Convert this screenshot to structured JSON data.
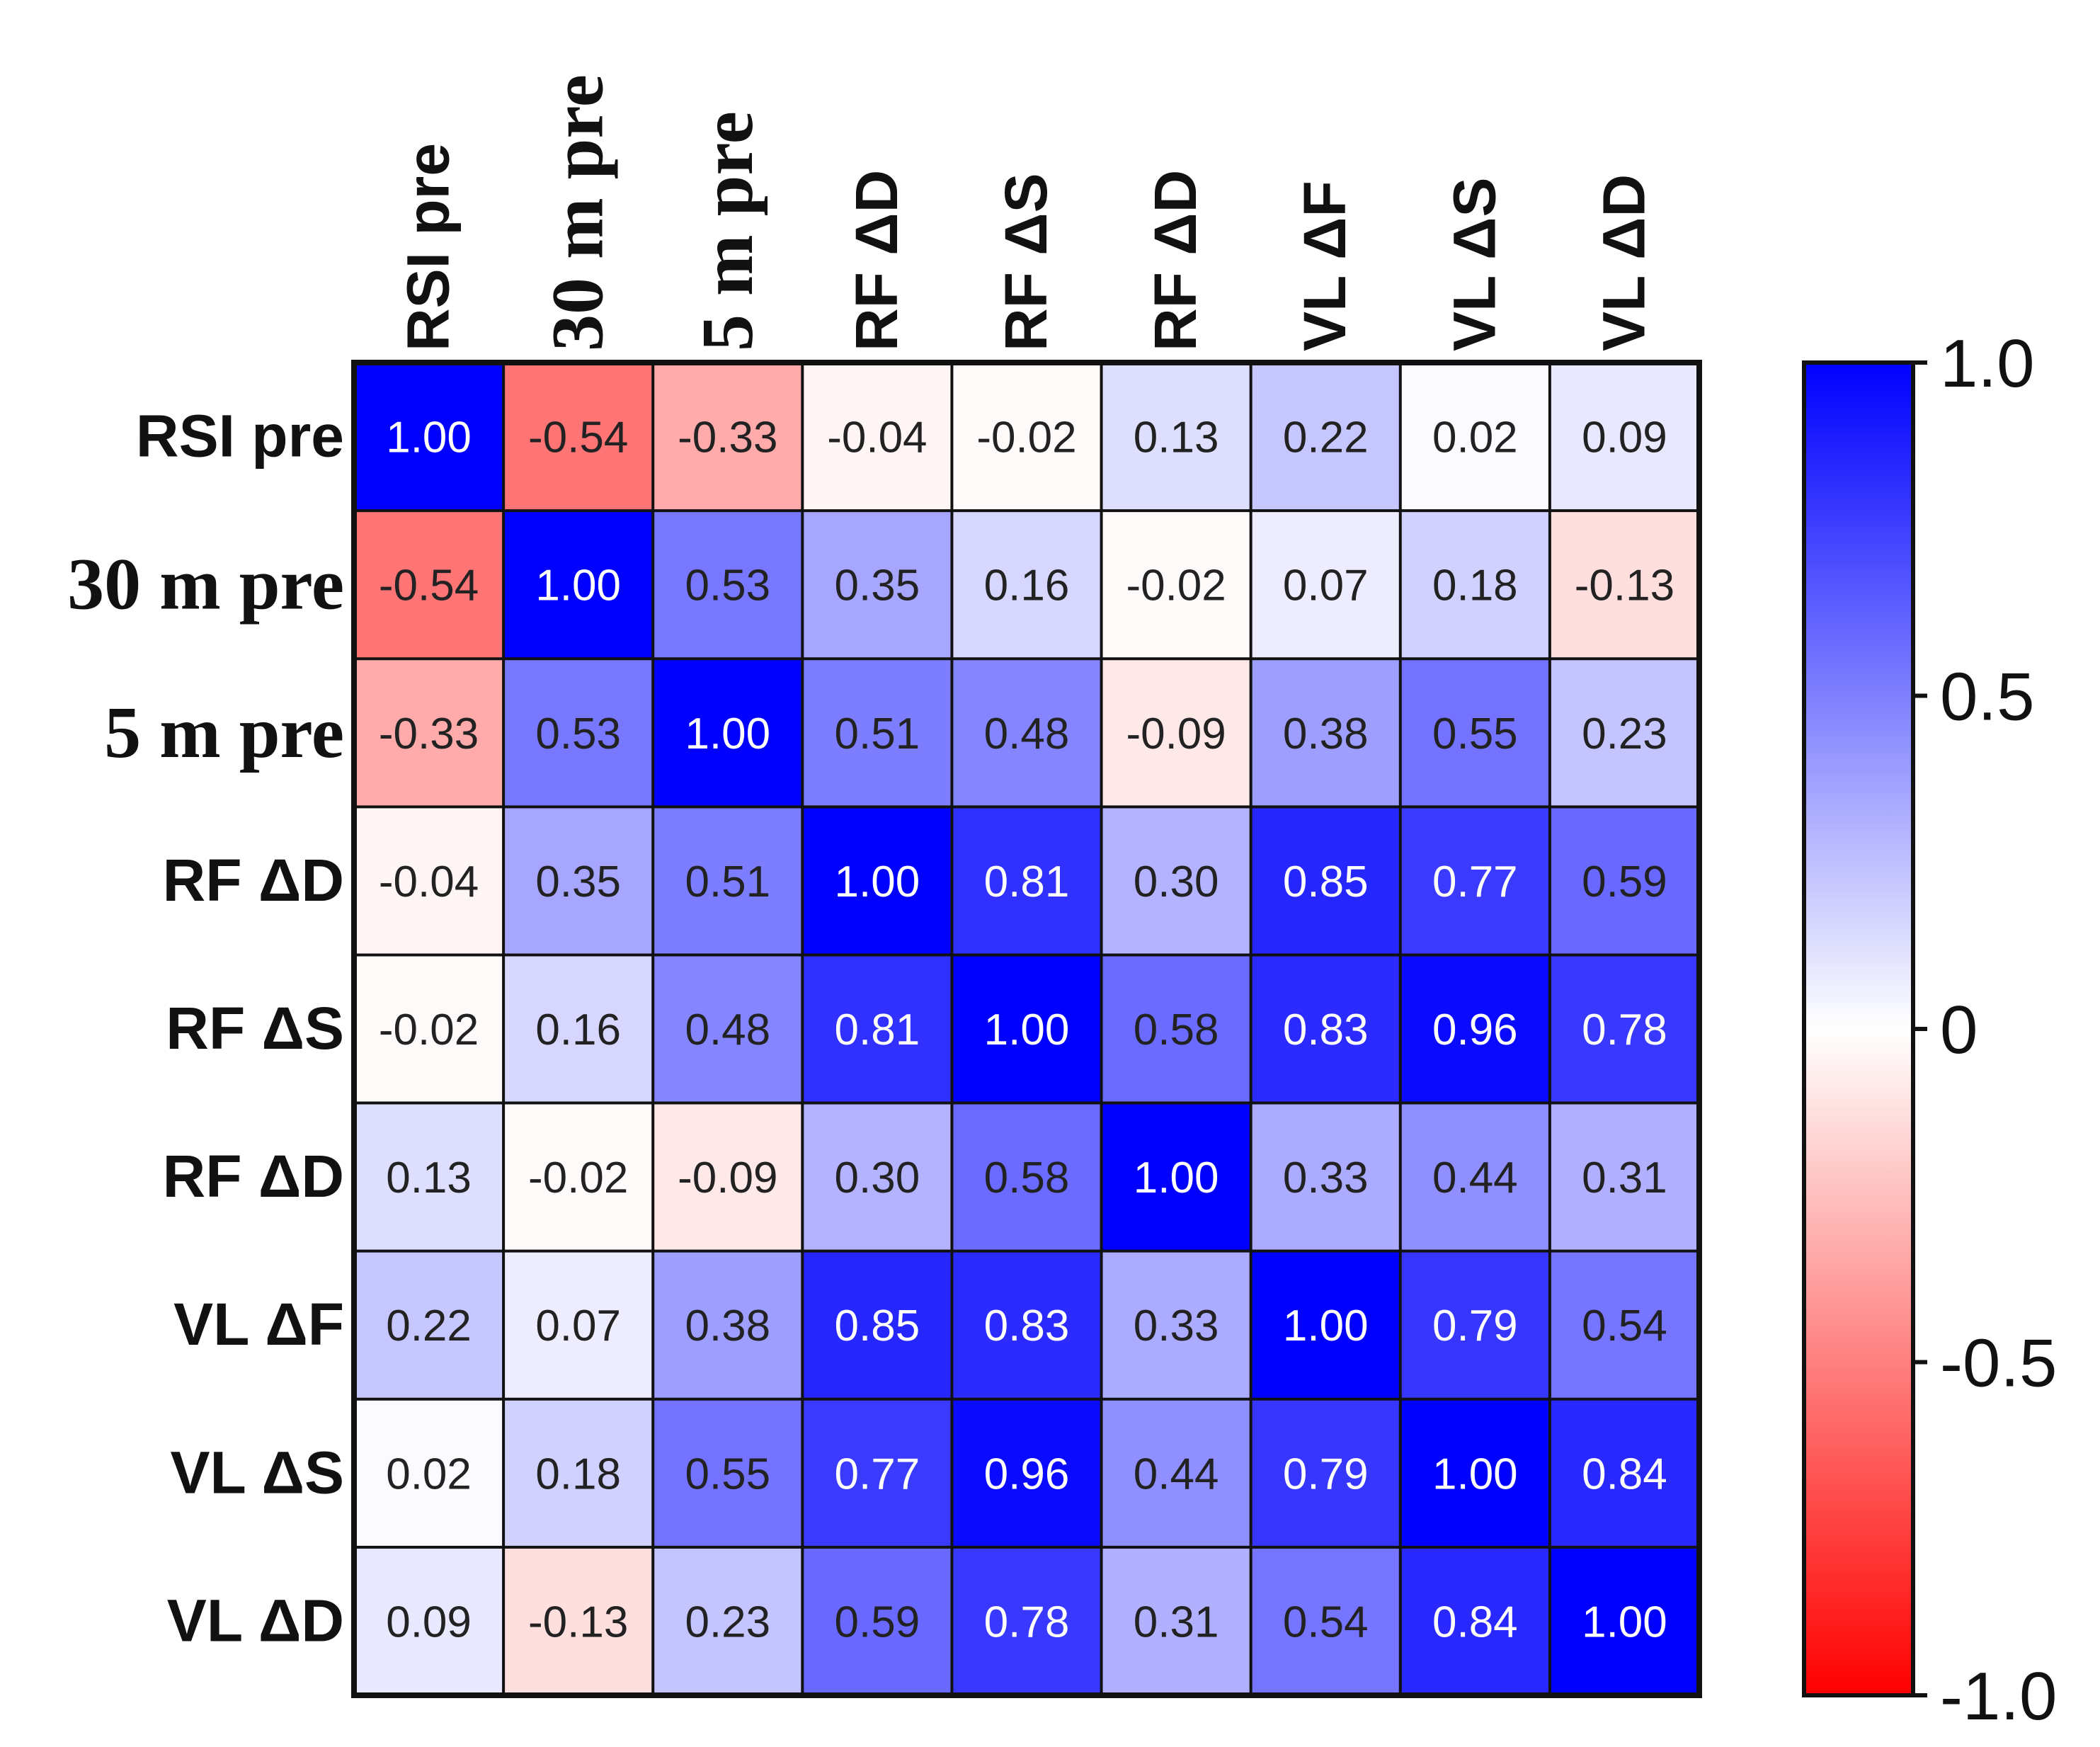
{
  "chart_data": {
    "type": "heatmap",
    "title": "",
    "rows": [
      {
        "label": "RSI pre",
        "font": "sans"
      },
      {
        "label": "30 m pre",
        "font": "serif"
      },
      {
        "label": "5 m pre",
        "font": "serif"
      },
      {
        "label": "RF ΔD",
        "font": "sans"
      },
      {
        "label": "RF ΔS",
        "font": "sans"
      },
      {
        "label": "RF ΔD",
        "font": "sans"
      },
      {
        "label": "VL ΔF",
        "font": "sans"
      },
      {
        "label": "VL ΔS",
        "font": "sans"
      },
      {
        "label": "VL ΔD",
        "font": "sans"
      }
    ],
    "columns": [
      {
        "label": "RSI pre",
        "font": "sans"
      },
      {
        "label": "30 m pre",
        "font": "serif"
      },
      {
        "label": "5 m pre",
        "font": "serif"
      },
      {
        "label": "RF ΔD",
        "font": "sans"
      },
      {
        "label": "RF ΔS",
        "font": "sans"
      },
      {
        "label": "RF ΔD",
        "font": "sans"
      },
      {
        "label": "VL ΔF",
        "font": "sans"
      },
      {
        "label": "VL ΔS",
        "font": "sans"
      },
      {
        "label": "VL ΔD",
        "font": "sans"
      }
    ],
    "values": [
      [
        1.0,
        -0.54,
        -0.33,
        -0.04,
        -0.02,
        0.13,
        0.22,
        0.02,
        0.09
      ],
      [
        -0.54,
        1.0,
        0.53,
        0.35,
        0.16,
        -0.02,
        0.07,
        0.18,
        -0.13
      ],
      [
        -0.33,
        0.53,
        1.0,
        0.51,
        0.48,
        -0.09,
        0.38,
        0.55,
        0.23
      ],
      [
        -0.04,
        0.35,
        0.51,
        1.0,
        0.81,
        0.3,
        0.85,
        0.77,
        0.59
      ],
      [
        -0.02,
        0.16,
        0.48,
        0.81,
        1.0,
        0.58,
        0.83,
        0.96,
        0.78
      ],
      [
        0.13,
        -0.02,
        -0.09,
        0.3,
        0.58,
        1.0,
        0.33,
        0.44,
        0.31
      ],
      [
        0.22,
        0.07,
        0.38,
        0.85,
        0.83,
        0.33,
        1.0,
        0.79,
        0.54
      ],
      [
        0.02,
        0.18,
        0.55,
        0.77,
        0.96,
        0.44,
        0.79,
        1.0,
        0.84
      ],
      [
        0.09,
        -0.13,
        0.23,
        0.59,
        0.78,
        0.31,
        0.54,
        0.84,
        1.0
      ]
    ],
    "colorbar": {
      "range": [
        -1.0,
        1.0
      ],
      "ticks": [
        {
          "value": 1.0,
          "label": "1.0"
        },
        {
          "value": 0.5,
          "label": "0.5"
        },
        {
          "value": 0,
          "label": "0"
        },
        {
          "value": -0.5,
          "label": "-0.5"
        },
        {
          "value": -1.0,
          "label": "-1.0"
        }
      ],
      "colors": {
        "negative": "#ff0000",
        "zero": "#ffffff",
        "positive": "#0000ff"
      }
    }
  }
}
